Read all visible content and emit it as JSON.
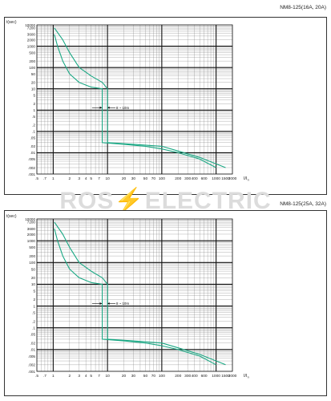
{
  "watermark": {
    "left": "ROS",
    "bolt": "⚡",
    "right": "ELECTRIC"
  },
  "colors": {
    "curve": "#1aa884",
    "grid": "#111111",
    "minor": "#7a7a7a"
  },
  "chart_data": [
    {
      "type": "line",
      "title": "NM8-125(16A, 20A)",
      "ylabel": "t(sec)",
      "xlabel": "I/I",
      "xlabel_sub": "n",
      "xscale": "log",
      "yscale": "log",
      "xlim": [
        0.5,
        2000
      ],
      "ylim": [
        0.001,
        10000
      ],
      "x_ticks": [
        ".5",
        ".7",
        "1",
        "2",
        "3",
        "4",
        "5",
        "7",
        "10",
        "20",
        "30",
        "50",
        "70",
        "100",
        "200",
        "300",
        "400",
        "600",
        "1000",
        "1500",
        "2000"
      ],
      "y_ticks": [
        "10000",
        "7200",
        "3600",
        "2000",
        "1000",
        "500",
        "200",
        "100",
        "50",
        "20",
        "10",
        "5",
        "2",
        "1",
        ".5",
        ".2",
        ".1",
        ".05",
        ".02",
        ".01",
        ".005",
        ".002",
        ".001"
      ],
      "annotation": "8 ~ 10In",
      "series": [
        {
          "values": [
            [
              1.05,
              3600
            ],
            [
              1.2,
              1000
            ],
            [
              1.5,
              200
            ],
            [
              2.0,
              50
            ],
            [
              3.0,
              20
            ],
            [
              5.0,
              12
            ],
            [
              8.0,
              10
            ],
            [
              8.0,
              0.03
            ],
            [
              20,
              0.025
            ],
            [
              50,
              0.02
            ],
            [
              100,
              0.015
            ],
            [
              200,
              0.01
            ],
            [
              500,
              0.005
            ],
            [
              1000,
              0.002
            ]
          ]
        },
        {
          "values": [
            [
              1.05,
              7200
            ],
            [
              1.5,
              2000
            ],
            [
              2.0,
              500
            ],
            [
              3.0,
              100
            ],
            [
              5.0,
              40
            ],
            [
              8.0,
              20
            ],
            [
              10.0,
              10
            ],
            [
              10.0,
              0.03
            ],
            [
              30,
              0.025
            ],
            [
              100,
              0.02
            ],
            [
              200,
              0.012
            ],
            [
              500,
              0.006
            ],
            [
              1500,
              0.002
            ]
          ]
        }
      ]
    },
    {
      "type": "line",
      "title": "NM8-125(25A, 32A)",
      "ylabel": "t(sec)",
      "xlabel": "I/I",
      "xlabel_sub": "n",
      "xscale": "log",
      "yscale": "log",
      "xlim": [
        0.5,
        2000
      ],
      "ylim": [
        0.001,
        10000
      ],
      "x_ticks": [
        ".5",
        ".7",
        "1",
        "2",
        "3",
        "4",
        "5",
        "7",
        "10",
        "20",
        "30",
        "50",
        "70",
        "100",
        "200",
        "300",
        "400",
        "600",
        "1000",
        "1500",
        "2000"
      ],
      "y_ticks": [
        "10000",
        "7200",
        "3600",
        "2000",
        "1000",
        "500",
        "200",
        "100",
        "50",
        "20",
        "10",
        "5",
        "2",
        "1",
        ".5",
        ".2",
        ".1",
        ".05",
        ".02",
        ".01",
        ".005",
        ".002",
        ".001"
      ],
      "annotation": "8 ~ 10In",
      "series": [
        {
          "values": [
            [
              1.05,
              3600
            ],
            [
              1.2,
              1000
            ],
            [
              1.5,
              200
            ],
            [
              2.0,
              50
            ],
            [
              3.0,
              20
            ],
            [
              5.0,
              12
            ],
            [
              8.0,
              10
            ],
            [
              8.0,
              0.03
            ],
            [
              20,
              0.025
            ],
            [
              50,
              0.02
            ],
            [
              100,
              0.015
            ],
            [
              200,
              0.01
            ],
            [
              500,
              0.005
            ],
            [
              1000,
              0.002
            ]
          ]
        },
        {
          "values": [
            [
              1.05,
              7200
            ],
            [
              1.5,
              2000
            ],
            [
              2.0,
              500
            ],
            [
              3.0,
              100
            ],
            [
              5.0,
              40
            ],
            [
              8.0,
              20
            ],
            [
              10.0,
              10
            ],
            [
              10.0,
              0.03
            ],
            [
              30,
              0.025
            ],
            [
              100,
              0.02
            ],
            [
              200,
              0.012
            ],
            [
              500,
              0.006
            ],
            [
              1500,
              0.002
            ]
          ]
        }
      ]
    }
  ]
}
